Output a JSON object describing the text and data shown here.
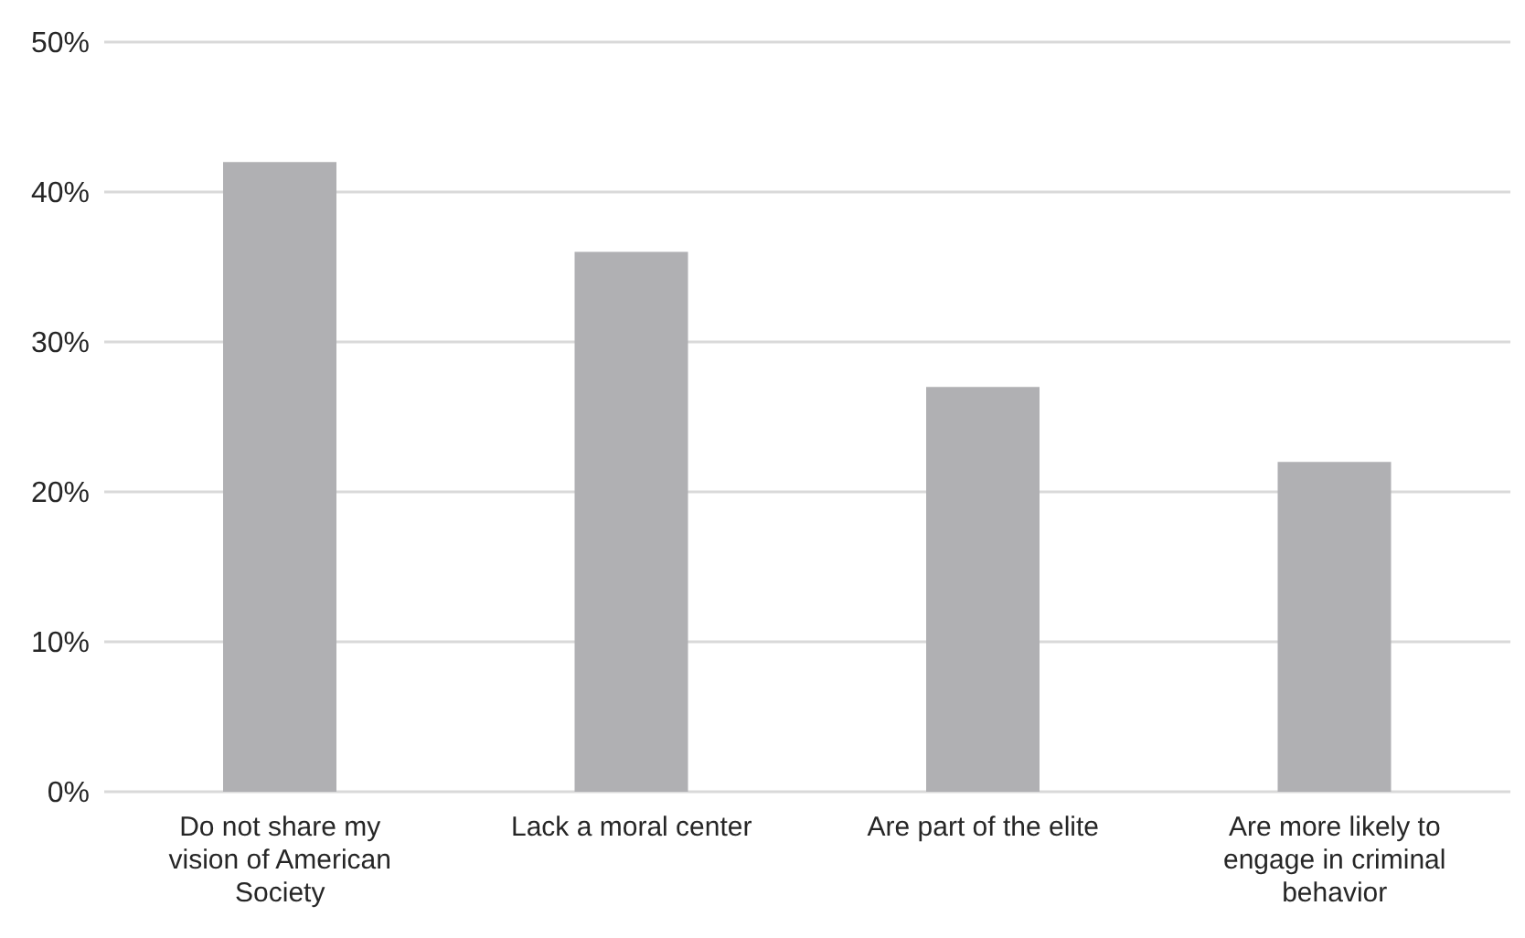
{
  "chart_data": {
    "type": "bar",
    "categories": [
      "Do not share my vision of American Society",
      "Lack a moral center",
      "Are part of the elite",
      "Are more likely to engage in criminal behavior"
    ],
    "values": [
      42,
      36,
      27,
      22
    ],
    "color": "#b0b0b3",
    "ylim": [
      0,
      50
    ],
    "yticks": [
      {
        "value": 0,
        "label": "0%"
      },
      {
        "value": 10,
        "label": "10%"
      },
      {
        "value": 20,
        "label": "20%"
      },
      {
        "value": 30,
        "label": "30%"
      },
      {
        "value": 40,
        "label": "40%"
      },
      {
        "value": 50,
        "label": "50%"
      }
    ],
    "grid": "y",
    "legend": false
  }
}
